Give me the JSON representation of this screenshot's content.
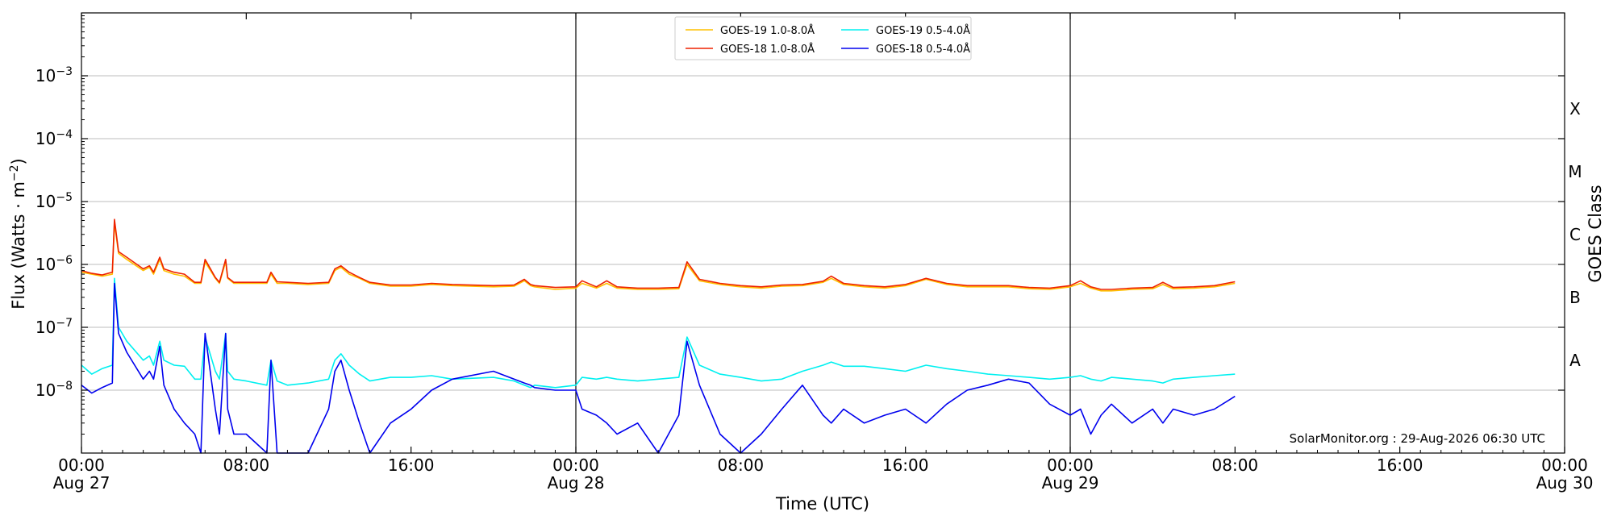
{
  "chart_data": {
    "type": "line",
    "xlabel": "Time (UTC)",
    "ylabel_prefix": "Flux (Watts · m",
    "ylabel_sup": "−2",
    "ylabel_suffix": ")",
    "y2label": "GOES Class",
    "yscale": "log",
    "xlim_hours": [
      0,
      72
    ],
    "ylim": [
      1e-09,
      0.01
    ],
    "yticks": [
      {
        "value": 1e-08,
        "base": "10",
        "exp": "−8"
      },
      {
        "value": 1e-07,
        "base": "10",
        "exp": "−7"
      },
      {
        "value": 1e-06,
        "base": "10",
        "exp": "−6"
      },
      {
        "value": 1e-05,
        "base": "10",
        "exp": "−5"
      },
      {
        "value": 0.0001,
        "base": "10",
        "exp": "−4"
      },
      {
        "value": 0.001,
        "base": "10",
        "exp": "−3"
      }
    ],
    "xticks": [
      {
        "hour": 0,
        "line1": "00:00",
        "line2": "Aug 27"
      },
      {
        "hour": 8,
        "line1": "08:00",
        "line2": ""
      },
      {
        "hour": 16,
        "line1": "16:00",
        "line2": ""
      },
      {
        "hour": 24,
        "line1": "00:00",
        "line2": "Aug 28"
      },
      {
        "hour": 32,
        "line1": "08:00",
        "line2": ""
      },
      {
        "hour": 40,
        "line1": "16:00",
        "line2": ""
      },
      {
        "hour": 48,
        "line1": "00:00",
        "line2": "Aug 29"
      },
      {
        "hour": 56,
        "line1": "08:00",
        "line2": ""
      },
      {
        "hour": 64,
        "line1": "16:00",
        "line2": ""
      },
      {
        "hour": 72,
        "line1": "00:00",
        "line2": "Aug 30"
      }
    ],
    "day_boundaries_hours": [
      24,
      48
    ],
    "grid": "horizontal",
    "classes": [
      {
        "label": "A",
        "flux": 3e-08
      },
      {
        "label": "B",
        "flux": 3e-07
      },
      {
        "label": "C",
        "flux": 3e-06
      },
      {
        "label": "M",
        "flux": 3e-05
      },
      {
        "label": "X",
        "flux": 0.0003
      }
    ],
    "legend_position": "upper center",
    "series": [
      {
        "name": "GOES-19 1.0-8.0Å",
        "color": "#ffc000",
        "x": [
          0,
          0.5,
          1,
          1.5,
          1.6,
          1.8,
          2.2,
          3,
          3.3,
          3.5,
          3.8,
          4,
          4.5,
          5,
          5.5,
          5.8,
          6,
          6.5,
          6.7,
          7,
          7.1,
          7.4,
          8,
          9,
          9.2,
          9.5,
          10,
          11,
          12,
          12.3,
          12.6,
          13,
          13.5,
          14,
          15,
          16,
          17,
          18,
          20,
          21,
          21.5,
          21.8,
          22,
          23,
          24,
          24.3,
          25,
          25.5,
          26,
          27,
          28,
          29,
          29.4,
          30,
          31,
          32,
          33,
          34,
          35,
          36,
          36.4,
          37,
          38,
          39,
          40,
          41,
          42,
          43,
          44,
          45,
          46,
          47,
          48,
          48.5,
          49,
          49.5,
          50,
          51,
          52,
          52.5,
          53,
          54,
          55,
          56
        ],
        "y": [
          7.5e-07,
          7e-07,
          6.5e-07,
          7e-07,
          4.5e-06,
          1.5e-06,
          1.2e-06,
          8e-07,
          9e-07,
          7e-07,
          1.2e-06,
          8e-07,
          7e-07,
          6.5e-07,
          5e-07,
          5e-07,
          1.1e-06,
          6e-07,
          5e-07,
          1.1e-06,
          6e-07,
          5e-07,
          5e-07,
          5e-07,
          7e-07,
          5e-07,
          5e-07,
          4.8e-07,
          5e-07,
          8e-07,
          9e-07,
          7e-07,
          6e-07,
          5e-07,
          4.5e-07,
          4.5e-07,
          4.8e-07,
          4.6e-07,
          4.4e-07,
          4.5e-07,
          5.5e-07,
          4.6e-07,
          4.4e-07,
          4e-07,
          4.2e-07,
          5e-07,
          4.2e-07,
          5e-07,
          4.2e-07,
          4e-07,
          4e-07,
          4.1e-07,
          1e-06,
          5.5e-07,
          4.8e-07,
          4.4e-07,
          4.2e-07,
          4.5e-07,
          4.6e-07,
          5.2e-07,
          6e-07,
          4.8e-07,
          4.4e-07,
          4.2e-07,
          4.6e-07,
          5.8e-07,
          4.8e-07,
          4.4e-07,
          4.4e-07,
          4.4e-07,
          4.1e-07,
          4e-07,
          4.4e-07,
          5e-07,
          4.2e-07,
          3.8e-07,
          3.8e-07,
          4e-07,
          4.1e-07,
          4.8e-07,
          4.1e-07,
          4.2e-07,
          4.4e-07,
          5e-07
        ]
      },
      {
        "name": "GOES-18 1.0-8.0Å",
        "color": "#ee2200",
        "x": [
          0,
          0.5,
          1,
          1.5,
          1.6,
          1.8,
          2.2,
          3,
          3.3,
          3.5,
          3.8,
          4,
          4.5,
          5,
          5.5,
          5.8,
          6,
          6.5,
          6.7,
          7,
          7.1,
          7.4,
          8,
          9,
          9.2,
          9.5,
          10,
          11,
          12,
          12.3,
          12.6,
          13,
          13.5,
          14,
          15,
          16,
          17,
          18,
          20,
          21,
          21.5,
          21.8,
          22,
          23,
          24,
          24.3,
          25,
          25.5,
          26,
          27,
          28,
          29,
          29.4,
          30,
          31,
          32,
          33,
          34,
          35,
          36,
          36.4,
          37,
          38,
          39,
          40,
          41,
          42,
          43,
          44,
          45,
          46,
          47,
          48,
          48.5,
          49,
          49.5,
          50,
          51,
          52,
          52.5,
          53,
          54,
          55,
          56
        ],
        "y": [
          8e-07,
          7.2e-07,
          6.8e-07,
          7.5e-07,
          5.2e-06,
          1.6e-06,
          1.3e-06,
          8.5e-07,
          9.5e-07,
          7.5e-07,
          1.3e-06,
          8.5e-07,
          7.5e-07,
          7e-07,
          5.2e-07,
          5.2e-07,
          1.2e-06,
          6.2e-07,
          5.2e-07,
          1.2e-06,
          6.2e-07,
          5.2e-07,
          5.2e-07,
          5.2e-07,
          7.5e-07,
          5.3e-07,
          5.2e-07,
          5e-07,
          5.2e-07,
          8.5e-07,
          9.5e-07,
          7.5e-07,
          6.2e-07,
          5.2e-07,
          4.7e-07,
          4.7e-07,
          5e-07,
          4.8e-07,
          4.6e-07,
          4.7e-07,
          5.8e-07,
          4.8e-07,
          4.6e-07,
          4.3e-07,
          4.4e-07,
          5.5e-07,
          4.4e-07,
          5.5e-07,
          4.4e-07,
          4.2e-07,
          4.2e-07,
          4.3e-07,
          1.1e-06,
          5.8e-07,
          5e-07,
          4.6e-07,
          4.4e-07,
          4.7e-07,
          4.8e-07,
          5.4e-07,
          6.5e-07,
          5e-07,
          4.6e-07,
          4.4e-07,
          4.8e-07,
          6e-07,
          5e-07,
          4.6e-07,
          4.6e-07,
          4.6e-07,
          4.3e-07,
          4.2e-07,
          4.6e-07,
          5.5e-07,
          4.4e-07,
          4e-07,
          4e-07,
          4.2e-07,
          4.3e-07,
          5.2e-07,
          4.3e-07,
          4.4e-07,
          4.6e-07,
          5.3e-07
        ]
      },
      {
        "name": "GOES-19 0.5-4.0Å",
        "color": "#00f0f0",
        "x": [
          0,
          0.5,
          1,
          1.5,
          1.6,
          1.8,
          2.2,
          3,
          3.3,
          3.5,
          3.8,
          4,
          4.5,
          5,
          5.5,
          5.8,
          6,
          6.5,
          6.7,
          7,
          7.1,
          7.4,
          8,
          9,
          9.2,
          9.5,
          10,
          11,
          12,
          12.3,
          12.6,
          13,
          13.5,
          14,
          15,
          16,
          17,
          18,
          20,
          21,
          21.5,
          21.8,
          22,
          23,
          24,
          24.3,
          25,
          25.5,
          26,
          27,
          28,
          29,
          29.4,
          30,
          31,
          32,
          33,
          34,
          35,
          36,
          36.4,
          37,
          38,
          39,
          40,
          41,
          42,
          43,
          44,
          45,
          46,
          47,
          48,
          48.5,
          49,
          49.5,
          50,
          51,
          52,
          52.5,
          53,
          54,
          55,
          56
        ],
        "y": [
          2.5e-08,
          1.8e-08,
          2.2e-08,
          2.5e-08,
          6e-07,
          1e-07,
          6e-08,
          3e-08,
          3.5e-08,
          2.5e-08,
          6e-08,
          3e-08,
          2.5e-08,
          2.4e-08,
          1.5e-08,
          1.5e-08,
          7e-08,
          2e-08,
          1.5e-08,
          8e-08,
          2e-08,
          1.5e-08,
          1.4e-08,
          1.2e-08,
          3e-08,
          1.4e-08,
          1.2e-08,
          1.3e-08,
          1.5e-08,
          3e-08,
          3.8e-08,
          2.5e-08,
          1.8e-08,
          1.4e-08,
          1.6e-08,
          1.6e-08,
          1.7e-08,
          1.5e-08,
          1.6e-08,
          1.4e-08,
          1.2e-08,
          1.1e-08,
          1.2e-08,
          1.1e-08,
          1.2e-08,
          1.6e-08,
          1.5e-08,
          1.6e-08,
          1.5e-08,
          1.4e-08,
          1.5e-08,
          1.6e-08,
          7e-08,
          2.5e-08,
          1.8e-08,
          1.6e-08,
          1.4e-08,
          1.5e-08,
          2e-08,
          2.5e-08,
          2.8e-08,
          2.4e-08,
          2.4e-08,
          2.2e-08,
          2e-08,
          2.5e-08,
          2.2e-08,
          2e-08,
          1.8e-08,
          1.7e-08,
          1.6e-08,
          1.5e-08,
          1.6e-08,
          1.7e-08,
          1.5e-08,
          1.4e-08,
          1.6e-08,
          1.5e-08,
          1.4e-08,
          1.3e-08,
          1.5e-08,
          1.6e-08,
          1.7e-08,
          1.8e-08
        ]
      },
      {
        "name": "GOES-18 0.5-4.0Å",
        "color": "#0000ee",
        "x": [
          0,
          0.5,
          1,
          1.5,
          1.6,
          1.8,
          2.2,
          3,
          3.3,
          3.5,
          3.8,
          4,
          4.5,
          5,
          5.5,
          5.8,
          6,
          6.5,
          6.7,
          7,
          7.1,
          7.4,
          8,
          9,
          9.2,
          9.5,
          10,
          11,
          12,
          12.3,
          12.6,
          13,
          13.5,
          14,
          15,
          16,
          17,
          18,
          20,
          21,
          21.5,
          21.8,
          22,
          23,
          24,
          24.3,
          25,
          25.5,
          26,
          27,
          28,
          29,
          29.4,
          30,
          31,
          32,
          33,
          34,
          35,
          36,
          36.4,
          37,
          38,
          39,
          40,
          41,
          42,
          43,
          44,
          45,
          46,
          47,
          48,
          48.5,
          49,
          49.5,
          50,
          51,
          52,
          52.5,
          53,
          54,
          55,
          56
        ],
        "y": [
          1.2e-08,
          9e-09,
          1.1e-08,
          1.3e-08,
          5e-07,
          8e-08,
          4e-08,
          1.5e-08,
          2e-08,
          1.5e-08,
          5e-08,
          1.2e-08,
          5e-09,
          3e-09,
          2e-09,
          1e-09,
          8e-08,
          5e-09,
          2e-09,
          8e-08,
          5e-09,
          2e-09,
          2e-09,
          1e-09,
          3e-08,
          1e-09,
          1e-09,
          1e-09,
          5e-09,
          2e-08,
          3e-08,
          1e-08,
          3e-09,
          1e-09,
          3e-09,
          5e-09,
          1e-08,
          1.5e-08,
          2e-08,
          1.5e-08,
          1.3e-08,
          1.2e-08,
          1.1e-08,
          1e-08,
          1e-08,
          5e-09,
          4e-09,
          3e-09,
          2e-09,
          3e-09,
          1e-09,
          4e-09,
          6e-08,
          1.2e-08,
          2e-09,
          1e-09,
          2e-09,
          5e-09,
          1.2e-08,
          4e-09,
          3e-09,
          5e-09,
          3e-09,
          4e-09,
          5e-09,
          3e-09,
          6e-09,
          1e-08,
          1.2e-08,
          1.5e-08,
          1.3e-08,
          6e-09,
          4e-09,
          5e-09,
          2e-09,
          4e-09,
          6e-09,
          3e-09,
          5e-09,
          3e-09,
          5e-09,
          4e-09,
          5e-09,
          8e-09
        ]
      }
    ],
    "annotation": "SolarMonitor.org : 29-Aug-2026 06:30 UTC"
  }
}
